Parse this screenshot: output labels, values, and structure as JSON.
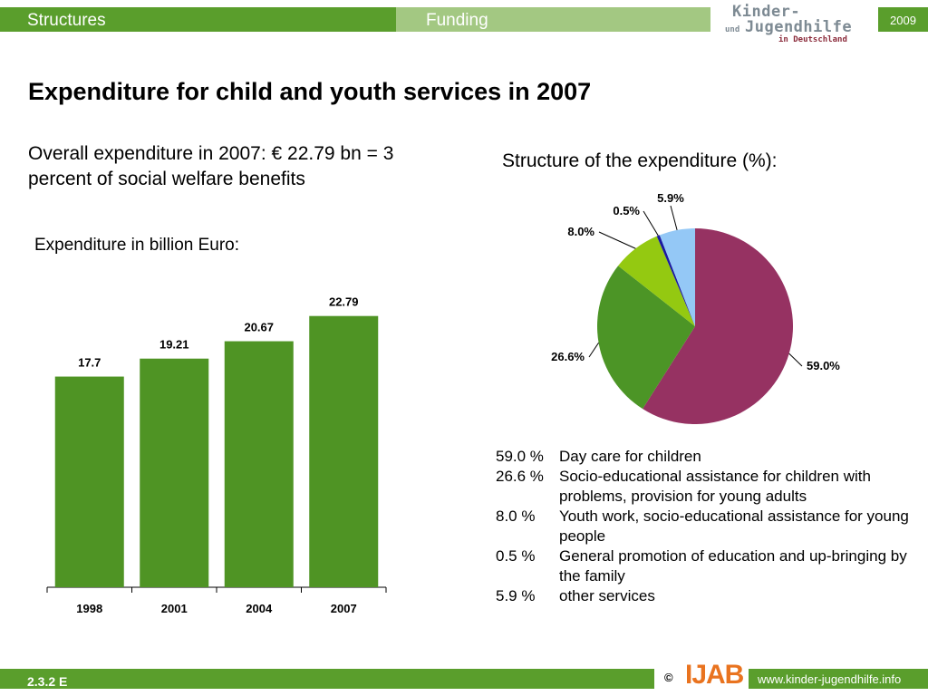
{
  "header": {
    "tab_structures": "Structures",
    "tab_funding": "Funding",
    "logo_line1": "Kinder-",
    "logo_und": "und",
    "logo_line2": "Jugendhilfe",
    "logo_line3": "in Deutschland",
    "year": "2009"
  },
  "title": "Expenditure for child and youth services in 2007",
  "overall_text": "Overall expenditure in 2007: € 22.79 bn = 3 percent of social welfare benefits",
  "bar_caption": "Expenditure in billion Euro:",
  "pie_caption": "Structure of the expenditure (%):",
  "legend": [
    {
      "pct": "59.0 %",
      "desc": "Day care for children"
    },
    {
      "pct": "26.6 %",
      "desc": "Socio-educational assistance for children with problems, provision for young adults"
    },
    {
      "pct": "8.0 %",
      "desc": "Youth work, socio-educational assistance for young people"
    },
    {
      "pct": "0.5 %",
      "desc": "General promotion of education and up-bringing by the family"
    },
    {
      "pct": "5.9 %",
      "desc": "other services"
    }
  ],
  "footer": {
    "code": "2.3.2 E",
    "copyright": "©",
    "ijab": "IJAB",
    "website": "www.kinder-jugendhilfe.info"
  },
  "colors": {
    "green": "#5a9e2c",
    "green_light": "#a3c882",
    "bar": "#4f9424"
  },
  "chart_data": [
    {
      "type": "bar",
      "title": "Expenditure in billion Euro:",
      "categories": [
        "1998",
        "2001",
        "2004",
        "2007"
      ],
      "values": [
        17.7,
        19.21,
        20.67,
        22.79
      ],
      "value_labels": [
        "17.7",
        "19.21",
        "20.67",
        "22.79"
      ],
      "ylim": [
        0,
        30
      ],
      "grid": false,
      "color": "#4f9424"
    },
    {
      "type": "pie",
      "title": "Structure of the expenditure (%):",
      "slices": [
        {
          "label": "59.0%",
          "value": 59.0,
          "color": "#963262"
        },
        {
          "label": "26.6%",
          "value": 26.6,
          "color": "#4c9526"
        },
        {
          "label": "8.0%",
          "value": 8.0,
          "color": "#94c911"
        },
        {
          "label": "0.5%",
          "value": 0.5,
          "color": "#1a1aa0"
        },
        {
          "label": "5.9%",
          "value": 5.9,
          "color": "#94c8f6"
        }
      ]
    }
  ]
}
